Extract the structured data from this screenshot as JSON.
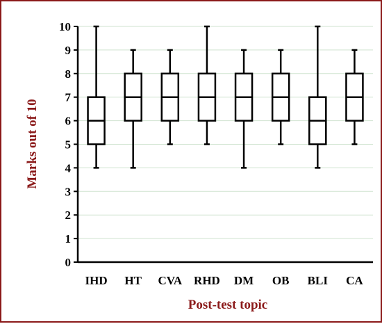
{
  "chart_data": {
    "type": "box",
    "xlabel": "Post-test topic",
    "ylabel": "Marks out of 10",
    "ylim": [
      0,
      10
    ],
    "yticks": [
      0,
      1,
      2,
      3,
      4,
      5,
      6,
      7,
      8,
      9,
      10
    ],
    "grid": true,
    "categories": [
      "IHD",
      "HT",
      "CVA",
      "RHD",
      "DM",
      "OB",
      "BLI",
      "CA"
    ],
    "boxes": [
      {
        "category": "IHD",
        "min": 4,
        "q1": 5,
        "median": 6,
        "q3": 7,
        "max": 10
      },
      {
        "category": "HT",
        "min": 4,
        "q1": 6,
        "median": 7,
        "q3": 8,
        "max": 9
      },
      {
        "category": "CVA",
        "min": 5,
        "q1": 6,
        "median": 7,
        "q3": 8,
        "max": 9
      },
      {
        "category": "RHD",
        "min": 5,
        "q1": 6,
        "median": 7,
        "q3": 8,
        "max": 10
      },
      {
        "category": "DM",
        "min": 4,
        "q1": 6,
        "median": 7,
        "q3": 8,
        "max": 9
      },
      {
        "category": "OB",
        "min": 5,
        "q1": 6,
        "median": 7,
        "q3": 8,
        "max": 9
      },
      {
        "category": "BLI",
        "min": 4,
        "q1": 5,
        "median": 6,
        "q3": 7,
        "max": 10
      },
      {
        "category": "CA",
        "min": 5,
        "q1": 6,
        "median": 7,
        "q3": 8,
        "max": 9
      }
    ],
    "colors": {
      "frame": "#8b1a1a",
      "axis_title": "#8b1a1a",
      "gridline": "#cfe3cf",
      "box": "#000000"
    }
  }
}
